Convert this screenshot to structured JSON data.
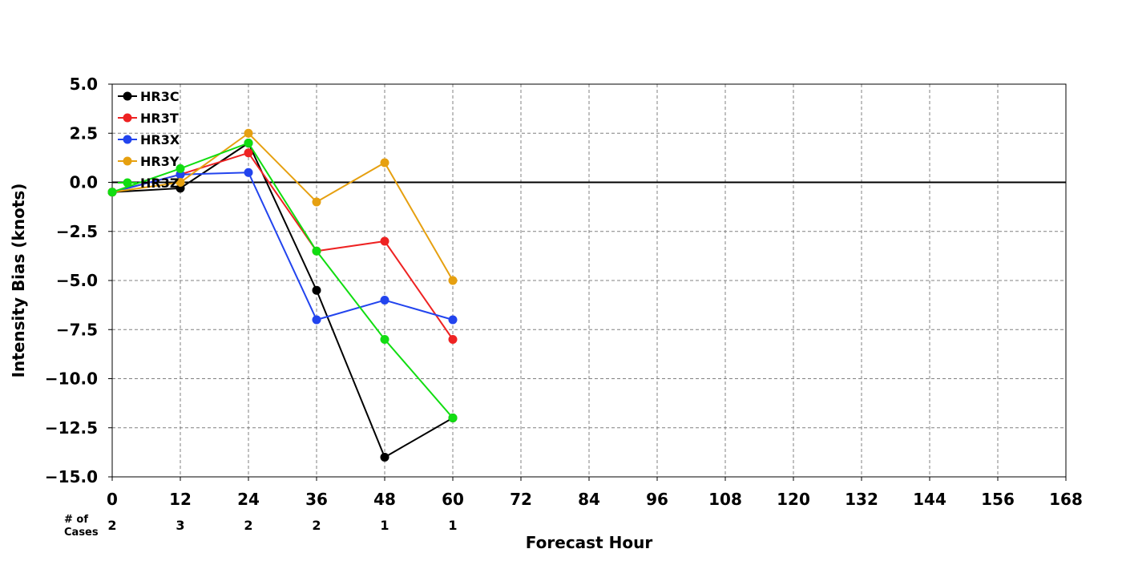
{
  "chart_data": {
    "type": "line",
    "title": "",
    "xlabel": "Forecast Hour",
    "ylabel": "Intensity Bias (knots)",
    "xlim": [
      0,
      168
    ],
    "ylim": [
      -15.0,
      5.0
    ],
    "x_ticks": [
      0,
      12,
      24,
      36,
      48,
      60,
      72,
      84,
      96,
      108,
      120,
      132,
      144,
      156,
      168
    ],
    "x_tick_labels": [
      "0",
      "12",
      "24",
      "36",
      "48",
      "60",
      "72",
      "84",
      "96",
      "108",
      "120",
      "132",
      "144",
      "156",
      "168"
    ],
    "y_ticks": [
      5.0,
      2.5,
      0.0,
      -2.5,
      -5.0,
      -7.5,
      -10.0,
      -12.5,
      -15.0
    ],
    "y_tick_labels": [
      "5.0",
      "2.5",
      "0.0",
      "−2.5",
      "−5.0",
      "−7.5",
      "−10.0",
      "−12.5",
      "−15.0"
    ],
    "grid": true,
    "zero_line": true,
    "legend_position": "top-left",
    "x": [
      0,
      12,
      24,
      36,
      48,
      60
    ],
    "series": [
      {
        "name": "HR3C",
        "color": "#000000",
        "values": [
          -0.5,
          -0.3,
          2.0,
          -5.5,
          -14.0,
          -12.0
        ]
      },
      {
        "name": "HR3T",
        "color": "#ee2222",
        "values": [
          -0.5,
          0.4,
          1.5,
          -3.5,
          -3.0,
          -8.0
        ]
      },
      {
        "name": "HR3X",
        "color": "#2244ee",
        "values": [
          -0.5,
          0.4,
          0.5,
          -7.0,
          -6.0,
          -7.0
        ]
      },
      {
        "name": "HR3Y",
        "color": "#e6a010",
        "values": [
          -0.5,
          0.0,
          2.5,
          -1.0,
          1.0,
          -5.0
        ]
      },
      {
        "name": "HR3Z",
        "color": "#11dd11",
        "values": [
          -0.5,
          0.7,
          2.0,
          -3.5,
          -8.0,
          -12.0
        ]
      }
    ],
    "cases": {
      "label_line1": "# of",
      "label_line2": "Cases",
      "values": [
        "2",
        "3",
        "2",
        "2",
        "1",
        "1"
      ]
    }
  }
}
